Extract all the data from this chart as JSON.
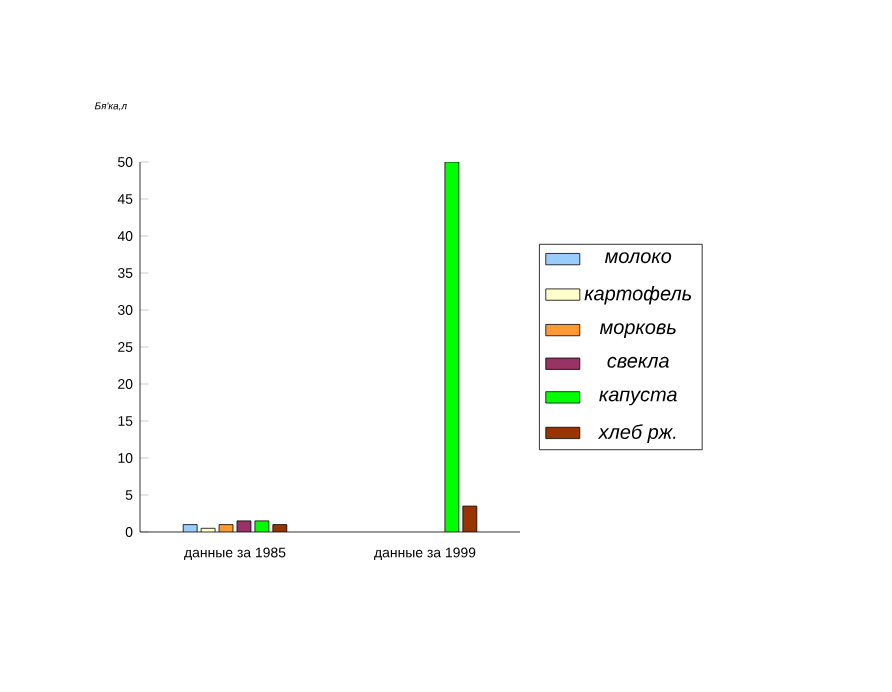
{
  "chart_data": {
    "type": "bar",
    "ylabel": "Бя'ка,л",
    "categories": [
      "данные за 1985",
      "данные за 1999"
    ],
    "series": [
      {
        "name": "молоко",
        "color": "#99ccff",
        "values": [
          1,
          null
        ]
      },
      {
        "name": "картофель",
        "color": "#ffffcc",
        "values": [
          0.5,
          null
        ]
      },
      {
        "name": "морковь",
        "color": "#ff9933",
        "values": [
          1,
          null
        ]
      },
      {
        "name": "свекла",
        "color": "#993366",
        "values": [
          1.5,
          null
        ]
      },
      {
        "name": "капуста",
        "color": "#00ff00",
        "values": [
          1.5,
          50
        ]
      },
      {
        "name": "хлеб рж.",
        "color": "#993300",
        "values": [
          1,
          3.5
        ]
      }
    ],
    "ylim": [
      0,
      50
    ],
    "yticks": [
      0,
      5,
      10,
      15,
      20,
      25,
      30,
      35,
      40,
      45,
      50
    ],
    "legend": "right"
  }
}
